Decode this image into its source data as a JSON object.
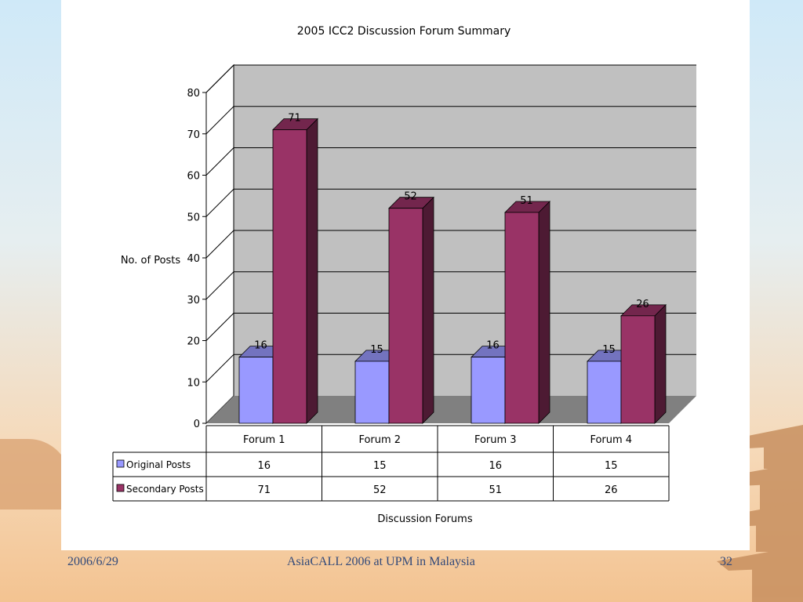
{
  "footer": {
    "date": "2006/6/29",
    "center": "AsiaCALL 2006 at UPM in Malaysia",
    "page": "32"
  },
  "colors": {
    "original": "#9999ff",
    "secondary": "#993366",
    "back_wall": "#c0c0c0",
    "floor": "#808080",
    "grid": "#000000"
  },
  "chart_data": {
    "type": "bar",
    "title": "2005 ICC2 Discussion  Forum Summary",
    "xlabel": "Discussion Forums",
    "ylabel": "No. of Posts",
    "categories": [
      "Forum 1",
      "Forum 2",
      "Forum 3",
      "Forum 4"
    ],
    "series": [
      {
        "name": "Original Posts",
        "values": [
          16,
          15,
          16,
          15
        ]
      },
      {
        "name": "Secondary Posts",
        "values": [
          71,
          52,
          51,
          26
        ]
      }
    ],
    "ylim": [
      0,
      80
    ],
    "yticks": [
      0,
      10,
      20,
      30,
      40,
      50,
      60,
      70,
      80
    ],
    "grid": true,
    "legend": "data-table",
    "three_d": true
  }
}
